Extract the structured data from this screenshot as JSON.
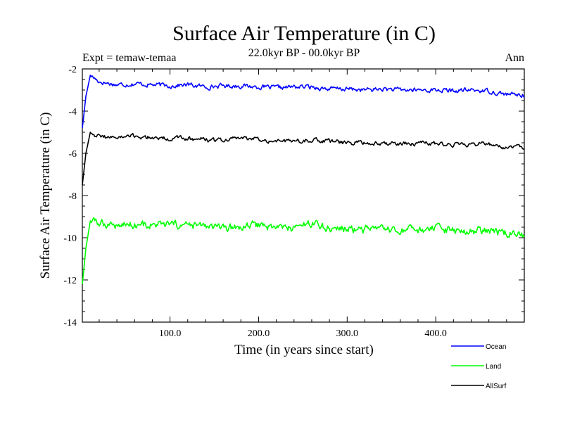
{
  "chart_data": {
    "type": "line",
    "title": "Surface Air Temperature (in C)",
    "subtitle": "22.0kyr BP - 00.0kyr BP",
    "experiment_label": "Expt = temaw-temaa",
    "period_label": "Ann",
    "xlabel": "Time (in years since start)",
    "ylabel": "Surface Air Temperature (in C)",
    "xlim": [
      1,
      500
    ],
    "ylim": [
      -14,
      -2
    ],
    "x_ticks": [
      100,
      200,
      300,
      400
    ],
    "x_tick_labels": [
      "100.0",
      "200.0",
      "300.0",
      "400.0"
    ],
    "y_ticks": [
      -14,
      -12,
      -10,
      -8,
      -6,
      -4,
      -2
    ],
    "y_tick_labels": [
      "-14",
      "-12",
      "-10",
      "-8",
      "-6",
      "-4",
      "-2"
    ],
    "legend_position": "bottom-right, outside plot",
    "series": [
      {
        "name": "Ocean",
        "color": "#0000ff",
        "x": [
          1,
          5,
          10,
          20,
          40,
          60,
          80,
          100,
          120,
          140,
          160,
          180,
          200,
          220,
          240,
          260,
          280,
          300,
          320,
          340,
          360,
          380,
          400,
          420,
          440,
          460,
          480,
          500
        ],
        "values": [
          -4.8,
          -3.3,
          -2.3,
          -2.6,
          -2.75,
          -2.7,
          -2.75,
          -2.8,
          -2.75,
          -2.85,
          -2.8,
          -2.8,
          -2.85,
          -2.9,
          -2.85,
          -2.85,
          -2.95,
          -2.95,
          -3.0,
          -2.95,
          -3.0,
          -3.0,
          -3.0,
          -3.05,
          -3.0,
          -3.05,
          -3.2,
          -3.25
        ]
      },
      {
        "name": "Land",
        "color": "#00ff00",
        "x": [
          1,
          5,
          10,
          20,
          40,
          60,
          80,
          100,
          120,
          140,
          160,
          180,
          200,
          220,
          240,
          260,
          280,
          300,
          320,
          340,
          360,
          380,
          400,
          420,
          440,
          460,
          480,
          500
        ],
        "values": [
          -12.2,
          -10.5,
          -9.2,
          -9.3,
          -9.4,
          -9.35,
          -9.4,
          -9.4,
          -9.45,
          -9.45,
          -9.6,
          -9.5,
          -9.4,
          -9.5,
          -9.55,
          -9.3,
          -9.55,
          -9.6,
          -9.6,
          -9.65,
          -9.7,
          -9.65,
          -9.6,
          -9.7,
          -9.7,
          -9.65,
          -9.8,
          -9.9
        ]
      },
      {
        "name": "AllSurf",
        "color": "#000000",
        "x": [
          1,
          5,
          10,
          20,
          40,
          60,
          80,
          100,
          120,
          140,
          160,
          180,
          200,
          220,
          240,
          260,
          280,
          300,
          320,
          340,
          360,
          380,
          400,
          420,
          440,
          460,
          480,
          500
        ],
        "values": [
          -7.5,
          -6.0,
          -5.0,
          -5.2,
          -5.25,
          -5.2,
          -5.25,
          -5.3,
          -5.3,
          -5.35,
          -5.4,
          -5.25,
          -5.35,
          -5.4,
          -5.45,
          -5.35,
          -5.45,
          -5.5,
          -5.5,
          -5.5,
          -5.55,
          -5.5,
          -5.55,
          -5.6,
          -5.55,
          -5.55,
          -5.7,
          -5.75
        ]
      }
    ]
  }
}
